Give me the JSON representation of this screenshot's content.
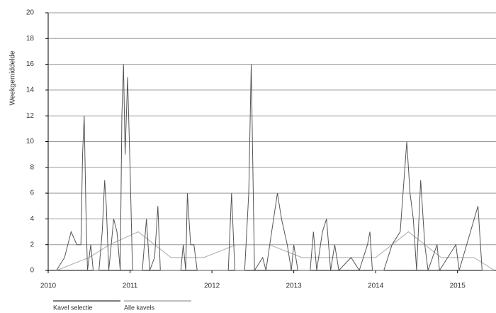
{
  "chart_data": {
    "type": "line",
    "y_label": "Weekgemiddelde",
    "xlim": [
      2010,
      2015.47
    ],
    "xticks": [
      2010,
      2011,
      2012,
      2013,
      2014,
      2015
    ],
    "ylim": [
      0,
      20
    ],
    "yticks": [
      0,
      2,
      4,
      6,
      8,
      10,
      12,
      14,
      16,
      18,
      20
    ],
    "grid": true,
    "series": [
      {
        "name": "Kavel selectie",
        "color": "#555555",
        "x": [
          2010.1,
          2010.2,
          2010.28,
          2010.35,
          2010.4,
          2010.42,
          2010.44,
          2010.46,
          2010.48,
          2010.52,
          2010.55,
          2010.62,
          2010.66,
          2010.69,
          2010.71,
          2010.74,
          2010.8,
          2010.84,
          2010.88,
          2010.9,
          2010.92,
          2010.94,
          2010.97,
          2011.0,
          2011.03,
          2011.08,
          2011.15,
          2011.2,
          2011.24,
          2011.3,
          2011.34,
          2011.37,
          2011.62,
          2011.65,
          2011.68,
          2011.7,
          2011.74,
          2011.78,
          2011.82,
          2012.2,
          2012.24,
          2012.28,
          2012.4,
          2012.45,
          2012.48,
          2012.52,
          2012.62,
          2012.66,
          2012.8,
          2012.85,
          2012.92,
          2012.97,
          2013.0,
          2013.05,
          2013.2,
          2013.24,
          2013.28,
          2013.35,
          2013.4,
          2013.45,
          2013.5,
          2013.55,
          2013.7,
          2013.8,
          2013.9,
          2013.93,
          2013.96,
          2014.1,
          2014.2,
          2014.3,
          2014.38,
          2014.42,
          2014.46,
          2014.5,
          2014.55,
          2014.6,
          2014.64,
          2014.75,
          2014.78,
          2014.98,
          2015.02,
          2015.25,
          2015.3,
          2015.45
        ],
        "values": [
          0,
          1,
          3,
          2,
          2,
          9,
          12,
          5,
          0,
          2,
          0,
          0,
          3,
          7,
          5,
          0,
          4,
          3,
          0,
          12,
          16,
          9,
          15,
          8,
          0,
          0,
          0,
          4,
          0,
          1,
          5,
          0,
          0,
          2,
          0,
          6,
          2,
          2,
          0,
          0,
          6,
          0,
          0,
          6,
          16,
          0,
          1,
          0,
          6,
          4,
          2,
          0,
          2,
          0,
          0,
          3,
          0,
          3,
          4,
          0,
          2,
          0,
          1,
          0,
          2,
          3,
          0,
          0,
          2,
          3,
          10,
          6,
          4,
          0,
          7,
          2,
          0,
          2,
          0,
          2,
          0,
          5,
          0,
          0
        ]
      },
      {
        "name": "Alle kavels",
        "color": "#aaaaaa",
        "x": [
          2010.1,
          2010.5,
          2010.75,
          2011.1,
          2011.5,
          2011.9,
          2012.3,
          2012.7,
          2013.1,
          2013.6,
          2014.0,
          2014.4,
          2014.8,
          2015.2,
          2015.45
        ],
        "values": [
          0,
          1,
          2,
          3,
          1,
          1,
          2,
          2,
          1,
          1,
          1,
          3,
          1,
          1,
          0
        ]
      }
    ]
  }
}
